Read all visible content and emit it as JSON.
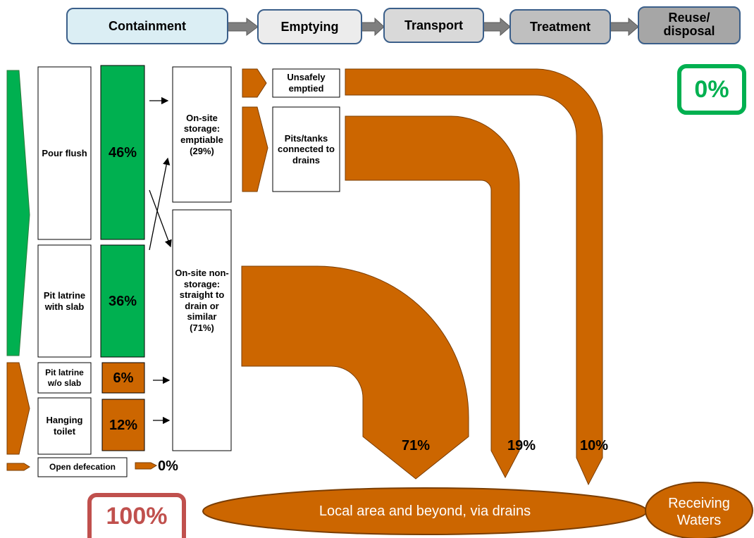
{
  "chain": [
    "Containment",
    "Emptying",
    "Transport",
    "Treatment",
    "Reuse/ disposal"
  ],
  "containment": [
    {
      "label": "Pour flush",
      "share": "46%"
    },
    {
      "label": "Pit latrine with slab",
      "share": "36%"
    },
    {
      "label": "Pit latrine w/o slab",
      "share": "6%"
    },
    {
      "label": "Hanging toilet",
      "share": "12%"
    }
  ],
  "open_defecation": {
    "label": "Open defecation",
    "share": "0%"
  },
  "storage": [
    "On-site storage: emptiable (29%)",
    "On-site non-storage: straight to drain or similar (71%)"
  ],
  "emptying": [
    "Unsafely emptied",
    "Pits/tanks connected to drains"
  ],
  "flows": [
    "71%",
    "19%",
    "10%"
  ],
  "safely_managed": "0%",
  "unsafely_managed": "100%",
  "destination": "Local area and beyond, via drains",
  "receiving": "Receiving Waters"
}
